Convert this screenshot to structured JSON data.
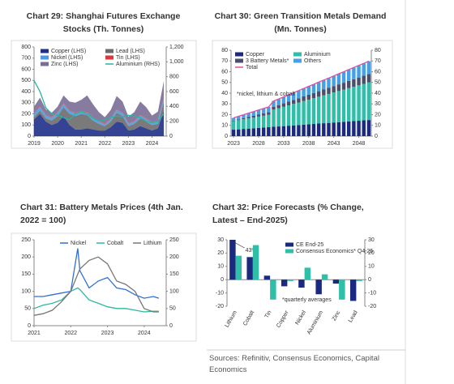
{
  "chart_data": [
    {
      "type": "area",
      "title": "Chart 29: Shanghai Futures Exchange Stocks (Th. Tonnes)",
      "x": [
        2019,
        2019.25,
        2019.5,
        2019.75,
        2020,
        2020.25,
        2020.5,
        2020.75,
        2021,
        2021.25,
        2021.5,
        2021.75,
        2022,
        2022.25,
        2022.5,
        2022.75,
        2023,
        2023.25,
        2023.5,
        2023.75,
        2024,
        2024.25,
        2024.5
      ],
      "xlim": [
        2019,
        2024.6
      ],
      "xticks": [
        2019,
        2020,
        2021,
        2022,
        2023,
        2024
      ],
      "ylim": [
        0,
        800
      ],
      "yticks": [
        0,
        100,
        200,
        300,
        400,
        500,
        600,
        700,
        800
      ],
      "y2lim": [
        0,
        1200
      ],
      "y2ticks": [
        0,
        200,
        400,
        600,
        800,
        {
          "value": 1000,
          "label": "1,000"
        },
        {
          "value": 1200,
          "label": "1,200"
        }
      ],
      "series": [
        {
          "name": "Copper (LHS)",
          "color": "#1f2f8a",
          "values": [
            150,
            200,
            130,
            100,
            120,
            180,
            100,
            60,
            60,
            70,
            60,
            50,
            50,
            80,
            130,
            120,
            50,
            60,
            90,
            70,
            50,
            70,
            230
          ]
        },
        {
          "name": "Lead (LHS)",
          "color": "#6b6b6b",
          "values": [
            20,
            30,
            30,
            40,
            60,
            80,
            100,
            120,
            140,
            120,
            80,
            60,
            40,
            50,
            80,
            60,
            40,
            50,
            70,
            60,
            50,
            40,
            80
          ]
        },
        {
          "name": "Nickel (LHS)",
          "color": "#4a9be0",
          "values": [
            30,
            30,
            25,
            25,
            30,
            30,
            25,
            25,
            20,
            20,
            20,
            20,
            15,
            20,
            25,
            25,
            20,
            20,
            25,
            25,
            20,
            25,
            30
          ]
        },
        {
          "name": "Tin (LHS)",
          "color": "#d93a3a",
          "values": [
            5,
            5,
            5,
            5,
            5,
            5,
            5,
            5,
            5,
            5,
            5,
            5,
            5,
            5,
            5,
            5,
            5,
            5,
            5,
            5,
            5,
            5,
            5
          ]
        },
        {
          "name": "Zinc (LHS)",
          "color": "#7a6e96",
          "values": [
            60,
            80,
            50,
            40,
            50,
            70,
            80,
            90,
            100,
            150,
            120,
            80,
            60,
            80,
            120,
            100,
            60,
            80,
            120,
            100,
            60,
            80,
            150
          ]
        },
        {
          "name": "Aluminium (RHS)",
          "color": "#26b5a0",
          "type": "line",
          "axis": "y2",
          "values": [
            750,
            600,
            380,
            300,
            280,
            250,
            220,
            300,
            330,
            300,
            240,
            200,
            220,
            250,
            270,
            260,
            280,
            270,
            250,
            200,
            180,
            200,
            300
          ]
        }
      ]
    },
    {
      "type": "bar",
      "stacked": true,
      "title": "Chart 30: Green Transition Metals Demand (Mn. Tonnes)",
      "note": "*nickel, lithium & cobalt",
      "x": [
        2023,
        2024,
        2025,
        2026,
        2027,
        2028,
        2029,
        2030,
        2031,
        2032,
        2033,
        2034,
        2035,
        2036,
        2037,
        2038,
        2039,
        2040,
        2041,
        2042,
        2043,
        2044,
        2045,
        2046,
        2047,
        2048,
        2049,
        2050
      ],
      "xlim": [
        2022.5,
        2050.5
      ],
      "xticks": [
        2023,
        2028,
        2033,
        2038,
        2043,
        2048
      ],
      "ylim": [
        0,
        80
      ],
      "yticks": [
        0,
        10,
        20,
        30,
        40,
        50,
        60,
        70,
        80
      ],
      "y2lim": [
        0,
        80
      ],
      "y2ticks": [
        0,
        10,
        20,
        30,
        40,
        50,
        60,
        70,
        80
      ],
      "series": [
        {
          "name": "Copper",
          "color": "#1b2a80",
          "values": [
            6.0,
            6.3,
            6.7,
            7.0,
            7.3,
            7.7,
            8.0,
            8.3,
            8.7,
            9.0,
            9.3,
            9.7,
            10.0,
            10.3,
            10.7,
            11.0,
            11.3,
            11.7,
            12.0,
            12.3,
            12.7,
            13.0,
            13.3,
            13.7,
            14.0,
            14.3,
            14.7,
            15.0
          ]
        },
        {
          "name": "Aluminium",
          "color": "#2fbfa8",
          "values": [
            8,
            8.5,
            9,
            9.5,
            10,
            10.5,
            11,
            11.5,
            16,
            17,
            18,
            19,
            20,
            21,
            22,
            23,
            24,
            25,
            26,
            27,
            28,
            29,
            30,
            31,
            32,
            33,
            34,
            35
          ]
        },
        {
          "name": "3 Battery Metals*",
          "color": "#4b4f6b",
          "values": [
            0.5,
            0.8,
            1.0,
            1.3,
            1.6,
            1.8,
            2.1,
            2.4,
            2.7,
            2.9,
            3.2,
            3.5,
            3.7,
            4.0,
            4.3,
            4.6,
            4.8,
            5.1,
            5.4,
            5.6,
            5.9,
            6.2,
            6.4,
            6.7,
            7.0,
            7.3,
            7.5,
            7.8
          ]
        },
        {
          "name": "Others",
          "color": "#45a0e8",
          "values": [
            2.5,
            2.9,
            3.2,
            3.6,
            3.9,
            4.3,
            4.6,
            5.0,
            5.3,
            5.7,
            6.0,
            6.4,
            6.7,
            7.1,
            7.4,
            7.8,
            8.1,
            8.5,
            8.8,
            9.2,
            9.5,
            9.9,
            10.2,
            10.6,
            10.9,
            11.3,
            11.6,
            12.0
          ]
        },
        {
          "name": "Total",
          "color": "#e0509a",
          "type": "line",
          "values": [
            17.0,
            18.5,
            19.9,
            21.4,
            22.8,
            24.3,
            25.7,
            27.2,
            32.7,
            34.6,
            36.5,
            38.6,
            40.4,
            42.4,
            44.4,
            46.4,
            48.2,
            50.3,
            52.2,
            54.1,
            56.1,
            58.1,
            59.9,
            62.0,
            63.9,
            65.9,
            67.8,
            69.8
          ]
        }
      ]
    },
    {
      "type": "line",
      "title": "Chart 31: Battery Metals Prices (4th Jan. 2022 = 100)",
      "x": [
        2021,
        2021.25,
        2021.5,
        2021.75,
        2022,
        2022.19,
        2022.25,
        2022.5,
        2022.75,
        2023,
        2023.25,
        2023.5,
        2023.75,
        2024,
        2024.25,
        2024.4
      ],
      "xlim": [
        2021,
        2024.6
      ],
      "xticks": [
        2021,
        2022,
        2023,
        2024
      ],
      "ylim": [
        0,
        250
      ],
      "yticks": [
        0,
        50,
        100,
        150,
        200,
        250
      ],
      "y2lim": [
        0,
        250
      ],
      "y2ticks": [
        0,
        50,
        100,
        150,
        200,
        250
      ],
      "series": [
        {
          "name": "Nickel",
          "color": "#2f6fd6",
          "values": [
            85,
            85,
            90,
            95,
            100,
            225,
            160,
            110,
            130,
            140,
            110,
            105,
            90,
            80,
            85,
            80
          ]
        },
        {
          "name": "Cobalt",
          "color": "#2db8a0",
          "values": [
            50,
            60,
            65,
            75,
            100,
            110,
            105,
            75,
            65,
            55,
            50,
            50,
            45,
            40,
            42,
            42
          ]
        },
        {
          "name": "Lithium",
          "color": "#777777",
          "values": [
            30,
            35,
            45,
            70,
            100,
            150,
            165,
            190,
            200,
            180,
            130,
            120,
            100,
            50,
            40,
            40
          ]
        }
      ]
    },
    {
      "type": "bar",
      "title": "Chart 32: Price Forecasts (% Change, Latest – End-2025)",
      "note": "*quarterly averages",
      "categories": [
        "Lithium",
        "Cobalt",
        "Tin",
        "Copper",
        "Nickel",
        "Aluminium",
        "Zinc",
        "Lead"
      ],
      "ylim": [
        -20,
        30
      ],
      "yticks": [
        -20,
        -10,
        0,
        10,
        20,
        30
      ],
      "y2lim": [
        -20,
        30
      ],
      "y2ticks": [
        -20,
        -10,
        0,
        10,
        20,
        30
      ],
      "series": [
        {
          "name": "CE End-25",
          "color": "#1b2a80",
          "values": [
            43,
            17,
            3,
            -5,
            -6,
            -11,
            -3,
            -16
          ],
          "value_labels": [
            "43%",
            null,
            null,
            null,
            null,
            null,
            null,
            null
          ]
        },
        {
          "name": "Consensus Economics* Q4-25",
          "color": "#2fbfa8",
          "values": [
            18,
            26,
            -15,
            -1,
            9,
            4,
            -15,
            -1
          ]
        }
      ]
    }
  ],
  "source": "Sources: Refinitiv, Consensus Economics, Capital Economics"
}
